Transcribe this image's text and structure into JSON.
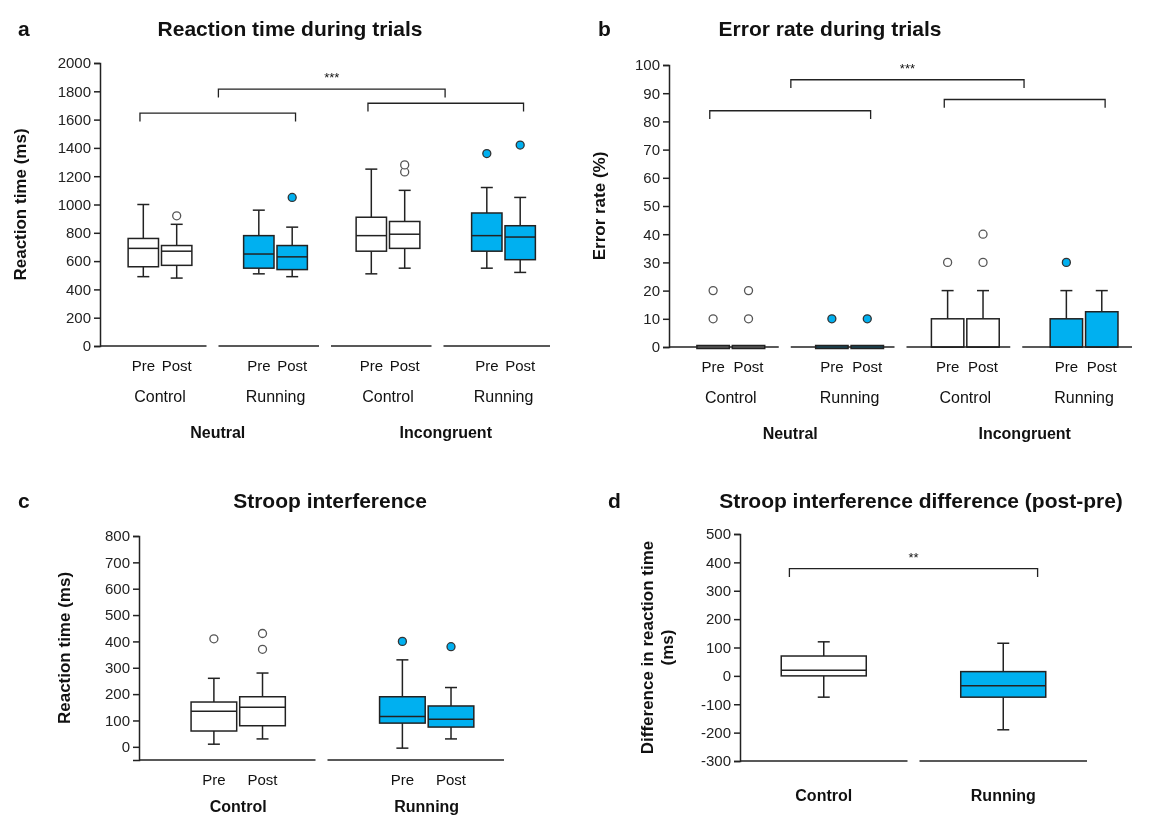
{
  "chart_data": [
    {
      "type": "box",
      "title": "Reaction time during trials",
      "ylabel": "Reaction time (ms)",
      "ylim": [
        0,
        2000
      ],
      "yticks": [
        0,
        200,
        400,
        600,
        800,
        1000,
        1200,
        1400,
        1600,
        1800,
        2000
      ],
      "categories": [
        "Pre",
        "Post",
        "Pre",
        "Post",
        "Pre",
        "Post",
        "Pre",
        "Post"
      ],
      "colors": [
        "#ffffff",
        "#ffffff",
        "#00b0f0",
        "#00b0f0",
        "#ffffff",
        "#ffffff",
        "#00b0f0",
        "#00b0f0"
      ],
      "boxes": [
        {
          "low": 490,
          "q1": 560,
          "median": 690,
          "q3": 760,
          "high": 1000
        },
        {
          "low": 480,
          "q1": 570,
          "median": 670,
          "q3": 710,
          "high": 860,
          "outliers": [
            920
          ]
        },
        {
          "low": 510,
          "q1": 550,
          "median": 650,
          "q3": 780,
          "high": 960
        },
        {
          "low": 490,
          "q1": 540,
          "median": 630,
          "q3": 710,
          "high": 840,
          "outliers": [
            1050
          ]
        },
        {
          "low": 510,
          "q1": 670,
          "median": 780,
          "q3": 910,
          "high": 1250
        },
        {
          "low": 550,
          "q1": 690,
          "median": 790,
          "q3": 880,
          "high": 1100,
          "outliers": [
            1230,
            1280
          ]
        },
        {
          "low": 550,
          "q1": 670,
          "median": 780,
          "q3": 940,
          "high": 1120,
          "outliers": [
            1360
          ]
        },
        {
          "low": 520,
          "q1": 610,
          "median": 770,
          "q3": 850,
          "high": 1050,
          "outliers": [
            1420
          ]
        }
      ],
      "annotations": [
        "a",
        "***",
        "Control",
        "Running",
        "Control",
        "Running",
        "Neutral",
        "Incongruent"
      ]
    },
    {
      "type": "box",
      "title": "Error rate during trials",
      "ylabel": "Error rate (%)",
      "ylim": [
        0,
        100
      ],
      "yticks": [
        0,
        10,
        20,
        30,
        40,
        50,
        60,
        70,
        80,
        90,
        100
      ],
      "categories": [
        "Pre",
        "Post",
        "Pre",
        "Post",
        "Pre",
        "Post",
        "Pre",
        "Post"
      ],
      "colors": [
        "#ffffff",
        "#ffffff",
        "#00b0f0",
        "#00b0f0",
        "#ffffff",
        "#ffffff",
        "#00b0f0",
        "#00b0f0"
      ],
      "boxes": [
        {
          "low": 0,
          "q1": 0,
          "median": 0,
          "q3": 0,
          "high": 0,
          "outliers": [
            10,
            20
          ]
        },
        {
          "low": 0,
          "q1": 0,
          "median": 0,
          "q3": 0,
          "high": 0,
          "outliers": [
            10,
            20
          ]
        },
        {
          "low": 0,
          "q1": 0,
          "median": 0,
          "q3": 0,
          "high": 0,
          "outliers": [
            10
          ]
        },
        {
          "low": 0,
          "q1": 0,
          "median": 0,
          "q3": 0,
          "high": 0,
          "outliers": [
            10
          ]
        },
        {
          "low": 0,
          "q1": 0,
          "median": 0,
          "q3": 10,
          "high": 20,
          "outliers": [
            30
          ]
        },
        {
          "low": 0,
          "q1": 0,
          "median": 0,
          "q3": 10,
          "high": 20,
          "outliers": [
            30,
            40
          ]
        },
        {
          "low": 0,
          "q1": 0,
          "median": 0,
          "q3": 10,
          "high": 20,
          "outliers": [
            30
          ]
        },
        {
          "low": 0,
          "q1": 0,
          "median": 0,
          "q3": 12.5,
          "high": 20
        }
      ],
      "annotations": [
        "b",
        "***",
        "Control",
        "Running",
        "Control",
        "Running",
        "Neutral",
        "Incongruent"
      ]
    },
    {
      "type": "box",
      "title": "Stroop interference",
      "ylabel": "Reaction time (ms)",
      "ylim": [
        -50,
        800
      ],
      "yticks": [
        0,
        100,
        200,
        300,
        400,
        500,
        600,
        700,
        800
      ],
      "categories": [
        "Pre",
        "Post",
        "Pre",
        "Post"
      ],
      "colors": [
        "#ffffff",
        "#ffffff",
        "#00b0f0",
        "#00b0f0"
      ],
      "boxes": [
        {
          "low": 10,
          "q1": 60,
          "median": 135,
          "q3": 170,
          "high": 260,
          "outliers": [
            410
          ]
        },
        {
          "low": 30,
          "q1": 80,
          "median": 150,
          "q3": 190,
          "high": 280,
          "outliers": [
            370,
            430
          ]
        },
        {
          "low": -5,
          "q1": 90,
          "median": 115,
          "q3": 190,
          "high": 330,
          "outliers": [
            400
          ]
        },
        {
          "low": 30,
          "q1": 75,
          "median": 105,
          "q3": 155,
          "high": 225,
          "outliers": [
            380
          ]
        }
      ],
      "annotations": [
        "c",
        "Control",
        "Running"
      ]
    },
    {
      "type": "box",
      "title": "Stroop interference difference (post-pre)",
      "ylabel": "Difference in reaction time (ms)",
      "ylim": [
        -300,
        500
      ],
      "yticks": [
        -300,
        -200,
        -100,
        0,
        100,
        200,
        300,
        400,
        500
      ],
      "categories": [
        "Control",
        "Running"
      ],
      "colors": [
        "#ffffff",
        "#00b0f0"
      ],
      "boxes": [
        {
          "low": -75,
          "q1": 0,
          "median": 20,
          "q3": 70,
          "high": 120
        },
        {
          "low": -190,
          "q1": -75,
          "median": -35,
          "q3": 15,
          "high": 115
        }
      ],
      "annotations": [
        "d",
        "**"
      ]
    }
  ]
}
